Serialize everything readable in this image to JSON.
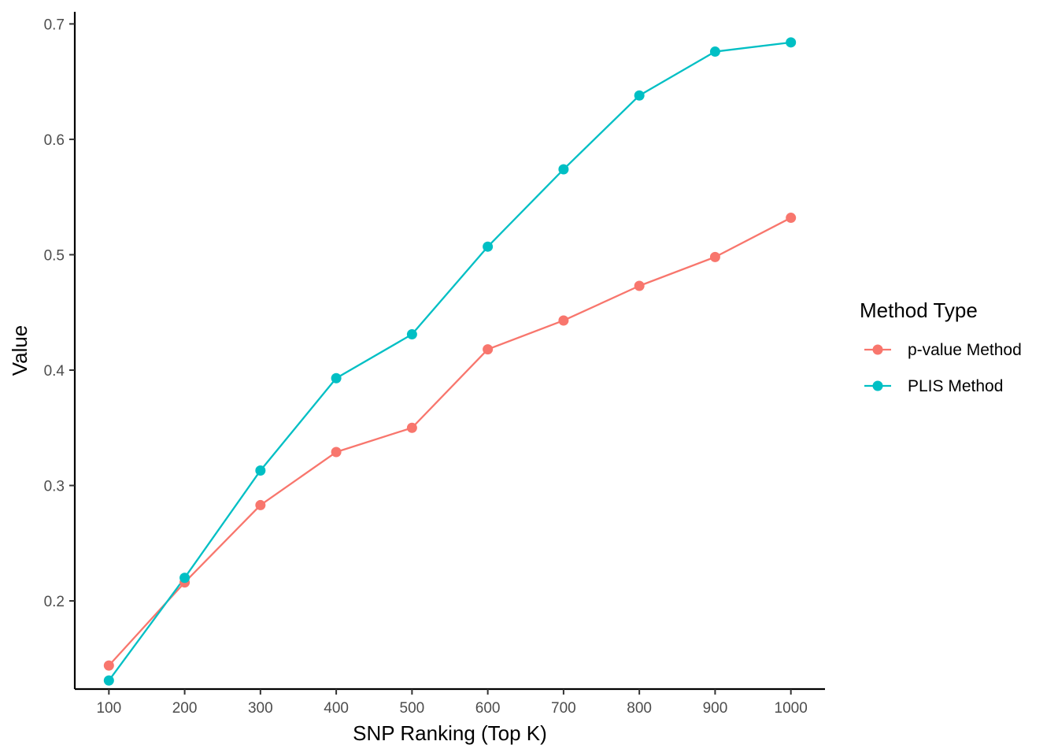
{
  "chart_data": {
    "type": "line",
    "title": "",
    "xlabel": "SNP Ranking (Top K)",
    "ylabel": "Value",
    "x": [
      100,
      200,
      300,
      400,
      500,
      600,
      700,
      800,
      900,
      1000
    ],
    "xlim": [
      55,
      1045
    ],
    "ylim": [
      0.1236,
      0.7105
    ],
    "xticks": [
      100,
      200,
      300,
      400,
      500,
      600,
      700,
      800,
      900,
      1000
    ],
    "yticks": [
      0.2,
      0.3,
      0.4,
      0.5,
      0.6,
      0.7
    ],
    "ytick_labels": [
      "0.2",
      "0.3",
      "0.4",
      "0.5",
      "0.6",
      "0.7"
    ],
    "grid": false,
    "legend": {
      "title": "Method Type",
      "position": "right"
    },
    "series": [
      {
        "name": "p-value Method",
        "color": "#F8766D",
        "values": [
          0.144,
          0.216,
          0.283,
          0.329,
          0.35,
          0.418,
          0.443,
          0.473,
          0.498,
          0.532
        ]
      },
      {
        "name": "PLIS Method",
        "color": "#00BFC4",
        "values": [
          0.131,
          0.22,
          0.313,
          0.393,
          0.431,
          0.507,
          0.574,
          0.638,
          0.676,
          0.684
        ]
      }
    ]
  }
}
